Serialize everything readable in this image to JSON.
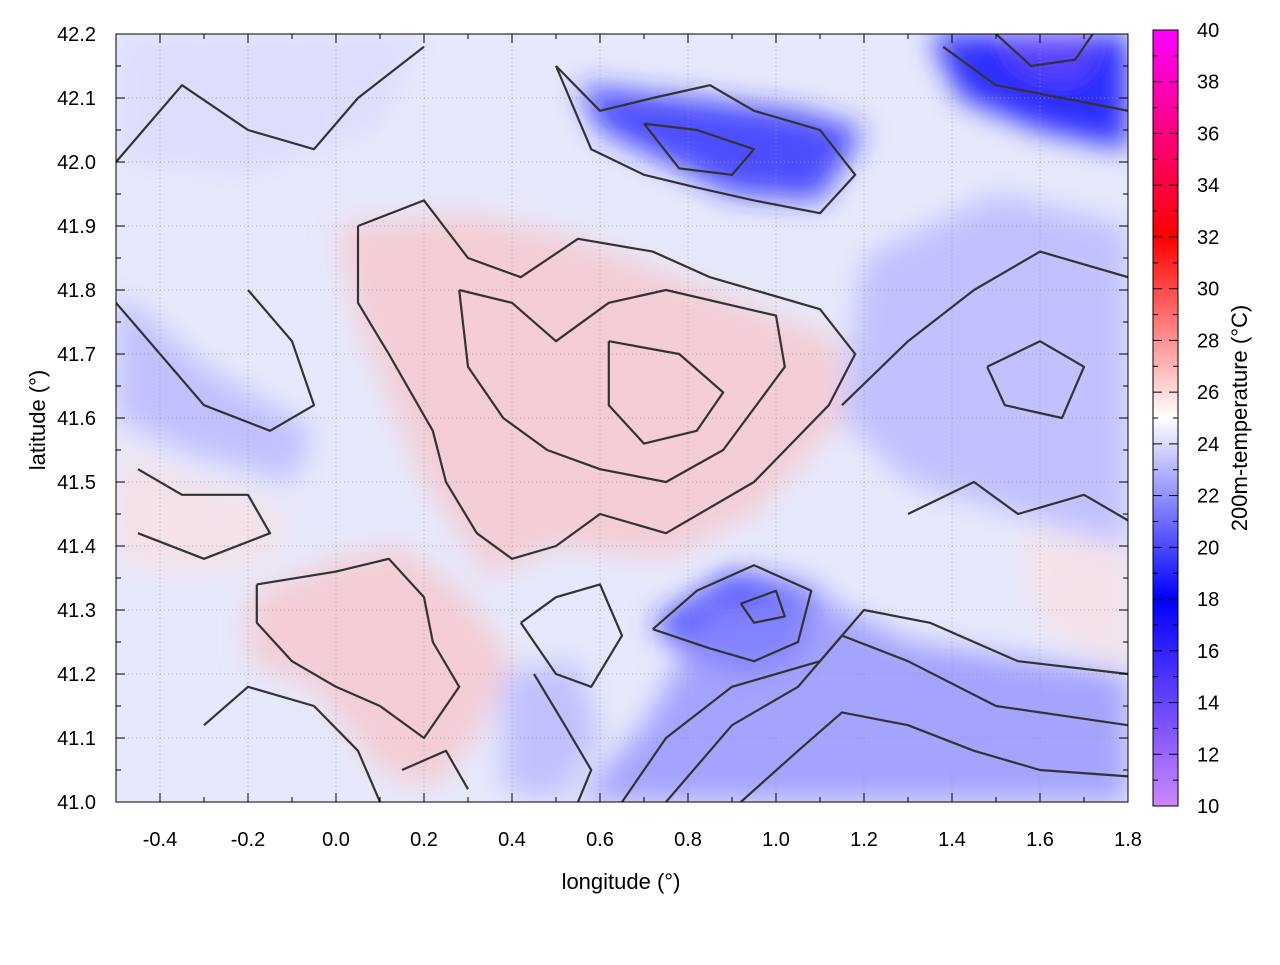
{
  "chart_data": {
    "type": "heatmap",
    "xlabel": "longitude (°)",
    "ylabel": "latitude (°)",
    "colorbar_label": "200m-temperature (°C)",
    "xlim": [
      -0.5,
      1.8
    ],
    "ylim": [
      41.0,
      42.2
    ],
    "x_ticks": [
      -0.4,
      -0.2,
      0.0,
      0.2,
      0.4,
      0.6,
      0.8,
      1.0,
      1.2,
      1.4,
      1.6,
      1.8
    ],
    "x_tick_labels": [
      "-0.4",
      "-0.2",
      "0.0",
      "0.2",
      "0.4",
      "0.6",
      "0.8",
      "1.0",
      "1.2",
      "1.4",
      "1.6",
      "1.8"
    ],
    "y_ticks": [
      41.0,
      41.1,
      41.2,
      41.3,
      41.4,
      41.5,
      41.6,
      41.7,
      41.8,
      41.9,
      42.0,
      42.1,
      42.2
    ],
    "y_tick_labels": [
      "41.0",
      "41.1",
      "41.2",
      "41.3",
      "41.4",
      "41.5",
      "41.6",
      "41.7",
      "41.8",
      "41.9",
      "42.0",
      "42.1",
      "42.2"
    ],
    "colorbar_range": [
      10,
      40
    ],
    "colorbar_ticks": [
      10,
      12,
      14,
      16,
      18,
      20,
      22,
      24,
      26,
      28,
      30,
      32,
      34,
      36,
      38,
      40
    ],
    "colorbar_tick_labels": [
      "10",
      "12",
      "14",
      "16",
      "18",
      "20",
      "22",
      "24",
      "26",
      "28",
      "30",
      "32",
      "34",
      "36",
      "38",
      "40"
    ],
    "colorbar_stops": [
      {
        "value": 10,
        "color": "#cc88ff"
      },
      {
        "value": 18,
        "color": "#0000ff"
      },
      {
        "value": 25,
        "color": "#ffffff"
      },
      {
        "value": 32,
        "color": "#ff0000"
      },
      {
        "value": 40,
        "color": "#ff00ff"
      }
    ],
    "grid": true,
    "contours": true,
    "field_regions": [
      {
        "kind": "warm",
        "value": 27,
        "points": [
          [
            0.0,
            41.9
          ],
          [
            0.3,
            41.92
          ],
          [
            0.55,
            41.88
          ],
          [
            0.85,
            41.8
          ],
          [
            1.15,
            41.72
          ],
          [
            1.15,
            41.6
          ],
          [
            0.95,
            41.45
          ],
          [
            0.75,
            41.38
          ],
          [
            0.5,
            41.4
          ],
          [
            0.35,
            41.35
          ],
          [
            0.2,
            41.5
          ],
          [
            0.05,
            41.75
          ]
        ]
      },
      {
        "kind": "warm",
        "value": 27,
        "points": [
          [
            -0.2,
            41.32
          ],
          [
            0.0,
            41.38
          ],
          [
            0.15,
            41.4
          ],
          [
            0.3,
            41.32
          ],
          [
            0.4,
            41.22
          ],
          [
            0.32,
            41.1
          ],
          [
            0.22,
            41.02
          ],
          [
            0.1,
            41.05
          ],
          [
            -0.05,
            41.18
          ],
          [
            -0.2,
            41.22
          ]
        ]
      },
      {
        "kind": "warm",
        "value": 26,
        "points": [
          [
            -0.5,
            41.55
          ],
          [
            -0.3,
            41.5
          ],
          [
            -0.1,
            41.45
          ],
          [
            -0.15,
            41.38
          ],
          [
            -0.35,
            41.35
          ],
          [
            -0.5,
            41.38
          ]
        ]
      },
      {
        "kind": "warm",
        "value": 26,
        "points": [
          [
            1.55,
            41.42
          ],
          [
            1.8,
            41.4
          ],
          [
            1.8,
            41.2
          ],
          [
            1.6,
            41.28
          ]
        ]
      },
      {
        "kind": "cool",
        "value": 18,
        "points": [
          [
            1.35,
            42.2
          ],
          [
            1.8,
            42.2
          ],
          [
            1.8,
            42.02
          ],
          [
            1.6,
            42.05
          ],
          [
            1.42,
            42.1
          ]
        ]
      },
      {
        "kind": "cool",
        "value": 19,
        "points": [
          [
            0.55,
            42.12
          ],
          [
            0.8,
            42.1
          ],
          [
            1.05,
            42.08
          ],
          [
            1.2,
            42.05
          ],
          [
            1.1,
            41.94
          ],
          [
            0.9,
            41.95
          ],
          [
            0.75,
            42.0
          ],
          [
            0.6,
            42.05
          ]
        ]
      },
      {
        "kind": "cool",
        "value": 19,
        "points": [
          [
            0.72,
            41.28
          ],
          [
            0.9,
            41.36
          ],
          [
            1.1,
            41.33
          ],
          [
            1.05,
            41.22
          ],
          [
            0.92,
            41.2
          ],
          [
            0.78,
            41.24
          ]
        ]
      },
      {
        "kind": "cool",
        "value": 22,
        "points": [
          [
            0.55,
            41.0
          ],
          [
            0.7,
            41.12
          ],
          [
            0.85,
            41.3
          ],
          [
            1.1,
            41.32
          ],
          [
            1.3,
            41.25
          ],
          [
            1.8,
            41.2
          ],
          [
            1.8,
            41.0
          ]
        ]
      },
      {
        "kind": "cool",
        "value": 23,
        "points": [
          [
            1.2,
            41.85
          ],
          [
            1.5,
            41.95
          ],
          [
            1.8,
            41.9
          ],
          [
            1.8,
            41.4
          ],
          [
            1.55,
            41.45
          ],
          [
            1.3,
            41.5
          ],
          [
            1.15,
            41.6
          ]
        ]
      },
      {
        "kind": "cool",
        "value": 23,
        "points": [
          [
            -0.5,
            41.8
          ],
          [
            -0.3,
            41.68
          ],
          [
            -0.05,
            41.58
          ],
          [
            -0.1,
            41.5
          ],
          [
            -0.35,
            41.55
          ],
          [
            -0.5,
            41.6
          ]
        ]
      },
      {
        "kind": "cool",
        "value": 24,
        "points": [
          [
            -0.5,
            42.2
          ],
          [
            0.2,
            42.2
          ],
          [
            0.1,
            42.05
          ],
          [
            -0.2,
            41.98
          ],
          [
            -0.5,
            42.0
          ]
        ]
      },
      {
        "kind": "cool",
        "value": 23,
        "points": [
          [
            0.38,
            41.2
          ],
          [
            0.55,
            41.22
          ],
          [
            0.6,
            41.1
          ],
          [
            0.5,
            41.0
          ],
          [
            0.38,
            41.02
          ]
        ]
      },
      {
        "kind": "cool",
        "value": 14,
        "points": [
          [
            1.52,
            42.2
          ],
          [
            1.72,
            42.2
          ],
          [
            1.68,
            42.14
          ],
          [
            1.58,
            42.15
          ]
        ]
      }
    ],
    "contour_lines": [
      [
        [
          0.05,
          41.9
        ],
        [
          0.2,
          41.94
        ],
        [
          0.3,
          41.85
        ],
        [
          0.42,
          41.82
        ],
        [
          0.55,
          41.88
        ],
        [
          0.72,
          41.86
        ],
        [
          0.85,
          41.82
        ],
        [
          1.1,
          41.77
        ],
        [
          1.18,
          41.7
        ],
        [
          1.12,
          41.62
        ],
        [
          0.95,
          41.5
        ],
        [
          0.75,
          41.42
        ],
        [
          0.6,
          41.45
        ],
        [
          0.5,
          41.4
        ],
        [
          0.4,
          41.38
        ],
        [
          0.32,
          41.42
        ],
        [
          0.25,
          41.5
        ],
        [
          0.22,
          41.58
        ],
        [
          0.12,
          41.7
        ],
        [
          0.05,
          41.78
        ],
        [
          0.05,
          41.9
        ]
      ],
      [
        [
          0.28,
          41.8
        ],
        [
          0.4,
          41.78
        ],
        [
          0.5,
          41.72
        ],
        [
          0.62,
          41.78
        ],
        [
          0.75,
          41.8
        ],
        [
          1.0,
          41.76
        ],
        [
          1.02,
          41.68
        ],
        [
          0.88,
          41.55
        ],
        [
          0.75,
          41.5
        ],
        [
          0.6,
          41.52
        ],
        [
          0.48,
          41.55
        ],
        [
          0.38,
          41.6
        ],
        [
          0.3,
          41.68
        ],
        [
          0.28,
          41.8
        ]
      ],
      [
        [
          0.62,
          41.72
        ],
        [
          0.78,
          41.7
        ],
        [
          0.88,
          41.64
        ],
        [
          0.82,
          41.58
        ],
        [
          0.7,
          41.56
        ],
        [
          0.62,
          41.62
        ],
        [
          0.62,
          41.72
        ]
      ],
      [
        [
          -0.18,
          41.34
        ],
        [
          0.0,
          41.36
        ],
        [
          0.12,
          41.38
        ],
        [
          0.2,
          41.32
        ],
        [
          0.22,
          41.25
        ],
        [
          0.28,
          41.18
        ],
        [
          0.2,
          41.1
        ],
        [
          0.1,
          41.15
        ],
        [
          0.0,
          41.18
        ],
        [
          -0.1,
          41.22
        ],
        [
          -0.18,
          41.28
        ],
        [
          -0.18,
          41.34
        ]
      ],
      [
        [
          -0.45,
          41.52
        ],
        [
          -0.35,
          41.48
        ],
        [
          -0.2,
          41.48
        ],
        [
          -0.15,
          41.42
        ],
        [
          -0.3,
          41.38
        ],
        [
          -0.45,
          41.42
        ]
      ],
      [
        [
          -0.5,
          42.0
        ],
        [
          -0.35,
          42.12
        ],
        [
          -0.2,
          42.05
        ],
        [
          -0.05,
          42.02
        ],
        [
          0.05,
          42.1
        ],
        [
          0.2,
          42.18
        ]
      ],
      [
        [
          -0.5,
          41.78
        ],
        [
          -0.4,
          41.7
        ],
        [
          -0.3,
          41.62
        ],
        [
          -0.15,
          41.58
        ],
        [
          -0.05,
          41.62
        ],
        [
          -0.1,
          41.72
        ],
        [
          -0.2,
          41.8
        ]
      ],
      [
        [
          0.5,
          42.15
        ],
        [
          0.6,
          42.08
        ],
        [
          0.72,
          42.1
        ],
        [
          0.85,
          42.12
        ],
        [
          0.95,
          42.08
        ],
        [
          1.1,
          42.05
        ],
        [
          1.18,
          41.98
        ],
        [
          1.1,
          41.92
        ],
        [
          0.95,
          41.94
        ],
        [
          0.82,
          41.96
        ],
        [
          0.7,
          41.98
        ],
        [
          0.58,
          42.02
        ],
        [
          0.5,
          42.15
        ]
      ],
      [
        [
          0.7,
          42.06
        ],
        [
          0.82,
          42.05
        ],
        [
          0.95,
          42.02
        ],
        [
          0.9,
          41.98
        ],
        [
          0.78,
          41.99
        ],
        [
          0.7,
          42.06
        ]
      ],
      [
        [
          1.38,
          42.18
        ],
        [
          1.5,
          42.12
        ],
        [
          1.65,
          42.1
        ],
        [
          1.8,
          42.08
        ]
      ],
      [
        [
          1.5,
          42.2
        ],
        [
          1.58,
          42.15
        ],
        [
          1.68,
          42.16
        ],
        [
          1.72,
          42.2
        ]
      ],
      [
        [
          0.72,
          41.27
        ],
        [
          0.82,
          41.33
        ],
        [
          0.95,
          41.37
        ],
        [
          1.08,
          41.33
        ],
        [
          1.05,
          41.25
        ],
        [
          0.95,
          41.22
        ],
        [
          0.85,
          41.24
        ],
        [
          0.72,
          41.27
        ]
      ],
      [
        [
          0.92,
          41.31
        ],
        [
          1.0,
          41.33
        ],
        [
          1.02,
          41.29
        ],
        [
          0.95,
          41.28
        ],
        [
          0.92,
          41.31
        ]
      ],
      [
        [
          0.65,
          41.0
        ],
        [
          0.75,
          41.1
        ],
        [
          0.9,
          41.18
        ],
        [
          1.1,
          41.22
        ],
        [
          1.2,
          41.3
        ],
        [
          1.35,
          41.28
        ],
        [
          1.55,
          41.22
        ],
        [
          1.8,
          41.2
        ]
      ],
      [
        [
          0.75,
          41.0
        ],
        [
          0.9,
          41.12
        ],
        [
          1.05,
          41.18
        ],
        [
          1.15,
          41.26
        ],
        [
          1.3,
          41.22
        ],
        [
          1.5,
          41.15
        ],
        [
          1.8,
          41.12
        ]
      ],
      [
        [
          0.92,
          41.0
        ],
        [
          1.05,
          41.08
        ],
        [
          1.15,
          41.14
        ],
        [
          1.3,
          41.12
        ],
        [
          1.45,
          41.08
        ],
        [
          1.6,
          41.05
        ],
        [
          1.8,
          41.04
        ]
      ],
      [
        [
          1.15,
          41.62
        ],
        [
          1.3,
          41.72
        ],
        [
          1.45,
          41.8
        ],
        [
          1.6,
          41.86
        ],
        [
          1.8,
          41.82
        ]
      ],
      [
        [
          1.3,
          41.45
        ],
        [
          1.45,
          41.5
        ],
        [
          1.55,
          41.45
        ],
        [
          1.7,
          41.48
        ],
        [
          1.8,
          41.44
        ]
      ],
      [
        [
          0.42,
          41.28
        ],
        [
          0.5,
          41.32
        ],
        [
          0.6,
          41.34
        ],
        [
          0.65,
          41.26
        ],
        [
          0.58,
          41.18
        ],
        [
          0.5,
          41.2
        ],
        [
          0.42,
          41.28
        ]
      ],
      [
        [
          0.45,
          41.2
        ],
        [
          0.52,
          41.12
        ],
        [
          0.58,
          41.05
        ],
        [
          0.55,
          41.0
        ]
      ],
      [
        [
          0.15,
          41.05
        ],
        [
          0.25,
          41.08
        ],
        [
          0.3,
          41.02
        ]
      ],
      [
        [
          -0.3,
          41.12
        ],
        [
          -0.2,
          41.18
        ],
        [
          -0.05,
          41.15
        ],
        [
          0.05,
          41.08
        ],
        [
          0.1,
          41.0
        ]
      ],
      [
        [
          1.48,
          41.68
        ],
        [
          1.6,
          41.72
        ],
        [
          1.7,
          41.68
        ],
        [
          1.65,
          41.6
        ],
        [
          1.52,
          41.62
        ],
        [
          1.48,
          41.68
        ]
      ]
    ]
  }
}
